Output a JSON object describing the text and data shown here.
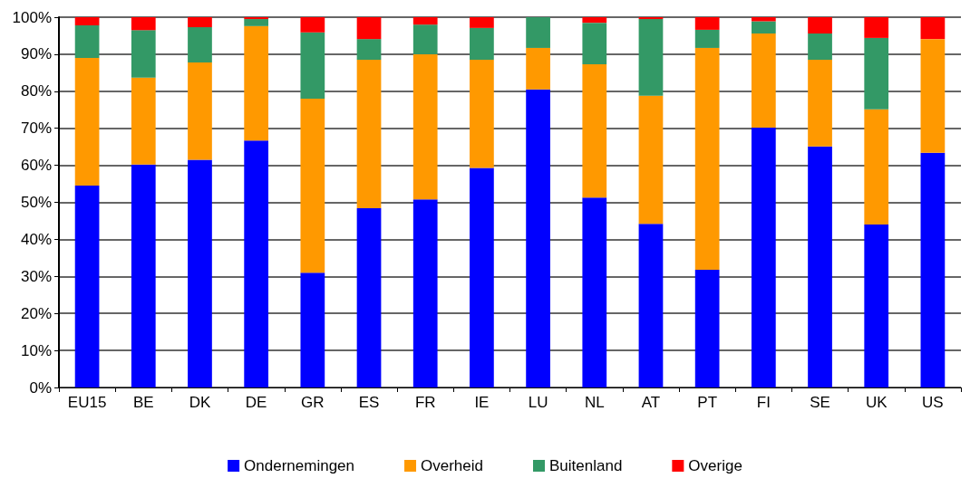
{
  "chart_data": {
    "type": "bar",
    "stacked": true,
    "categories": [
      "EU15",
      "BE",
      "DK",
      "DE",
      "GR",
      "ES",
      "FR",
      "IE",
      "LU",
      "NL",
      "AT",
      "PT",
      "FI",
      "SE",
      "UK",
      "US"
    ],
    "series": [
      {
        "name": "Ondernemingen",
        "color": "#0000ff",
        "values": [
          54.5,
          60.2,
          61.5,
          66.7,
          31,
          48.4,
          50.8,
          59.3,
          80.5,
          51.3,
          44.2,
          31.8,
          70.2,
          65.1,
          44,
          63.4
        ]
      },
      {
        "name": "Overheid",
        "color": "#ff9900",
        "values": [
          34.5,
          23.5,
          26.3,
          30.9,
          47,
          40.1,
          39.2,
          29.2,
          11.2,
          36,
          34.6,
          59.9,
          25.4,
          23.4,
          31.1,
          30.7
        ]
      },
      {
        "name": "Buitenland",
        "color": "#339966",
        "values": [
          8.8,
          12.8,
          9.5,
          1.9,
          17.9,
          5.6,
          8,
          8.6,
          8.3,
          11.2,
          20.7,
          4.9,
          3.3,
          7.1,
          19.3,
          0
        ]
      },
      {
        "name": "Overige",
        "color": "#ff0000",
        "values": [
          2.2,
          3.5,
          2.7,
          0.5,
          4.1,
          5.9,
          2,
          2.9,
          0,
          1.5,
          0.5,
          3.4,
          1.1,
          4.4,
          5.6,
          5.9
        ]
      }
    ],
    "ylim": [
      0,
      100
    ],
    "yticks": [
      {
        "value": 0,
        "label": "0%"
      },
      {
        "value": 10,
        "label": "10%"
      },
      {
        "value": 20,
        "label": "20%"
      },
      {
        "value": 30,
        "label": "30%"
      },
      {
        "value": 40,
        "label": "40%"
      },
      {
        "value": 50,
        "label": "50%"
      },
      {
        "value": 60,
        "label": "60%"
      },
      {
        "value": 70,
        "label": "70%"
      },
      {
        "value": 80,
        "label": "80%"
      },
      {
        "value": 90,
        "label": "90%"
      },
      {
        "value": 100,
        "label": "100%"
      }
    ],
    "grid": "y",
    "legend": "bottom"
  }
}
